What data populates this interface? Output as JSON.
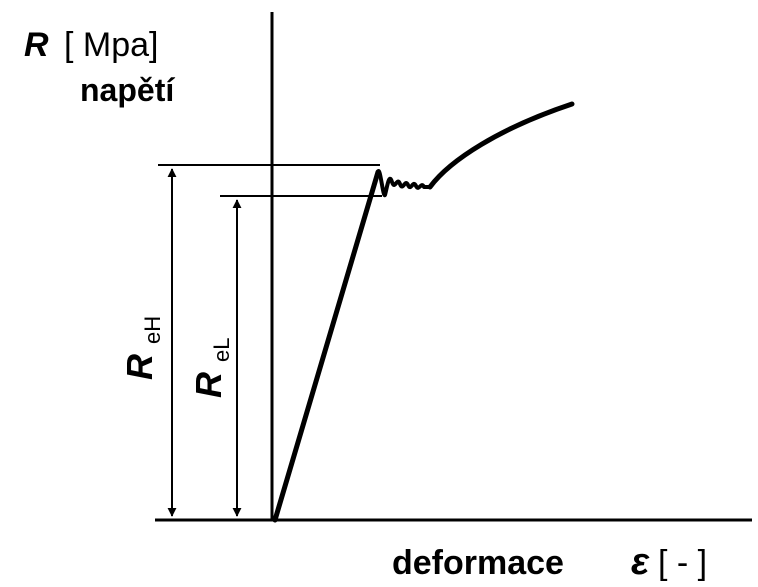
{
  "y_axis_label": {
    "symbol": "R",
    "unit": "[ Mpa]",
    "name": "napětí"
  },
  "x_axis_label": {
    "name": "deformace",
    "symbol": "ε",
    "unit": "[ - ]"
  },
  "upper_yield_label": {
    "symbol": "R",
    "subscript": "eH"
  },
  "lower_yield_label": {
    "symbol": "R",
    "subscript": "eL"
  },
  "colors": {
    "ink": "#000000",
    "background": "#ffffff"
  }
}
